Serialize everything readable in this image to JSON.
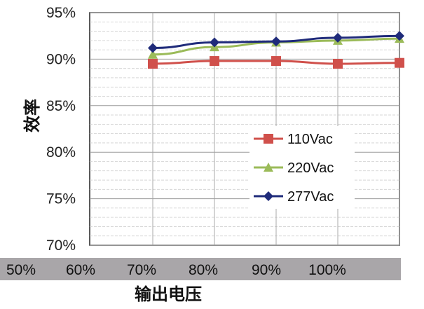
{
  "chart_data": {
    "type": "line",
    "title": "",
    "xlabel": "输出电压",
    "ylabel": "效率",
    "x_tick_labels": [
      "50%",
      "60%",
      "70%",
      "80%",
      "90%",
      "100%"
    ],
    "y_tick_labels": [
      "70%",
      "75%",
      "80%",
      "85%",
      "90%",
      "95%"
    ],
    "ylim": [
      70,
      95
    ],
    "x_points": [
      0,
      1,
      2,
      3,
      4
    ],
    "grid": true,
    "legend_position": "right-middle",
    "series": [
      {
        "name": "110Vac",
        "values": [
          89.5,
          89.8,
          89.8,
          89.5,
          89.6
        ],
        "color": "#d0504b",
        "marker": "square"
      },
      {
        "name": "220Vac",
        "values": [
          90.5,
          91.3,
          91.8,
          92.0,
          92.2
        ],
        "color": "#9bbb59",
        "marker": "triangle"
      },
      {
        "name": "277Vac",
        "values": [
          91.2,
          91.8,
          91.9,
          92.3,
          92.5
        ],
        "color": "#1f2b7a",
        "marker": "diamond"
      }
    ]
  }
}
